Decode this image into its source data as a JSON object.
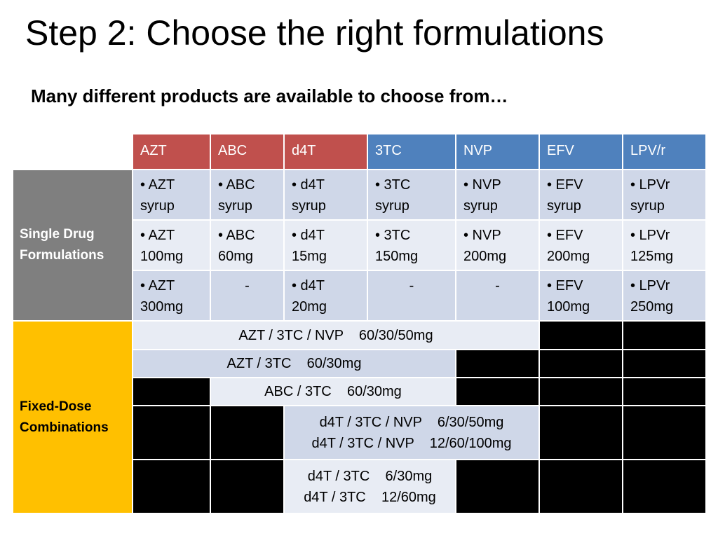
{
  "slide": {
    "title": "Step 2: Choose the right formulations",
    "subtitle": "Many different products are available to choose from…"
  },
  "table": {
    "headers": [
      "AZT",
      "ABC",
      "d4T",
      "3TC",
      "NVP",
      "EFV",
      "LPV/r"
    ],
    "header_colors": [
      "#c0504d",
      "#c0504d",
      "#c0504d",
      "#4f81bd",
      "#4f81bd",
      "#4f81bd",
      "#4f81bd"
    ],
    "single_label_1": "Single Drug",
    "single_label_2": "Formulations",
    "fixed_label_1": "Fixed-Dose",
    "fixed_label_2": "Combinations",
    "single_rows": [
      [
        [
          "• AZT",
          "syrup"
        ],
        [
          "• ABC",
          "syrup"
        ],
        [
          "• d4T",
          "syrup"
        ],
        [
          "• 3TC",
          "syrup"
        ],
        [
          "• NVP",
          "syrup"
        ],
        [
          "• EFV",
          "syrup"
        ],
        [
          "• LPVr",
          "syrup"
        ]
      ],
      [
        [
          "• AZT",
          "100mg"
        ],
        [
          "• ABC",
          "60mg"
        ],
        [
          "• d4T",
          "15mg"
        ],
        [
          "• 3TC",
          "150mg"
        ],
        [
          "• NVP",
          "200mg"
        ],
        [
          "• EFV",
          "200mg"
        ],
        [
          "• LPVr",
          "125mg"
        ]
      ],
      [
        [
          "• AZT",
          "300mg"
        ],
        [
          "-"
        ],
        [
          "• d4T",
          "20mg"
        ],
        [
          "-"
        ],
        [
          "-"
        ],
        [
          "• EFV",
          "100mg"
        ],
        [
          "• LPVr",
          "250mg"
        ]
      ]
    ],
    "fdc": {
      "azt_3tc_nvp": "AZT / 3TC / NVP    60/30/50mg",
      "azt_3tc": "AZT / 3TC    60/30mg",
      "abc_3tc": "ABC / 3TC    60/30mg",
      "d4t_3tc_nvp_1": "d4T / 3TC / NVP    6/30/50mg",
      "d4t_3tc_nvp_2": "d4T / 3TC / NVP    12/60/100mg",
      "d4t_3tc_1": "d4T / 3TC    6/30mg",
      "d4t_3tc_2": "d4T / 3TC    12/60mg"
    }
  },
  "colors": {
    "header_red": "#c0504d",
    "header_blue": "#4f81bd",
    "single_band": "#7f7f7f",
    "fixed_band": "#ffc000",
    "row_dark": "#cfd7e8",
    "row_light": "#e8ecf4"
  }
}
